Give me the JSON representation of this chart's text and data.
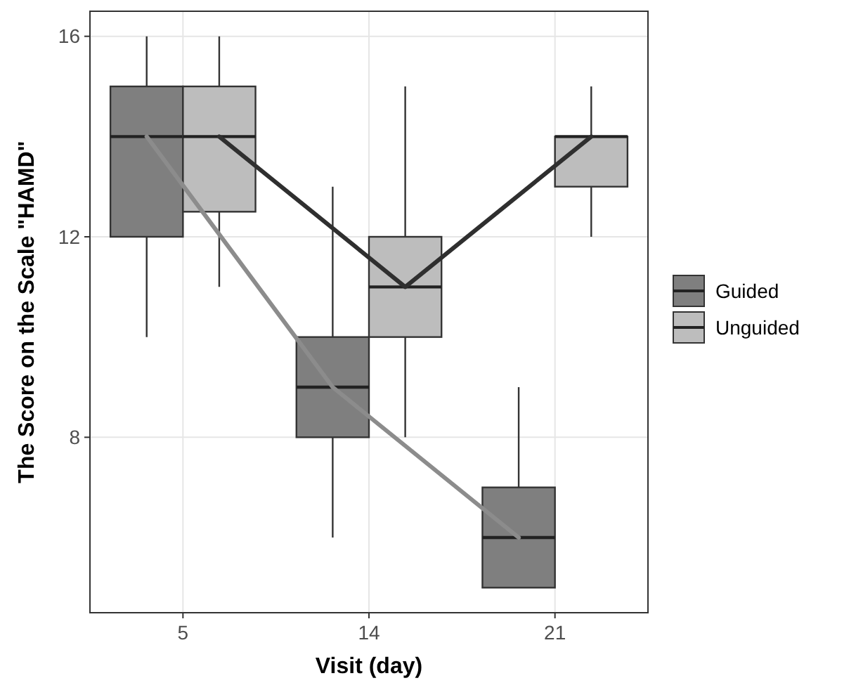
{
  "chart_data": {
    "type": "box",
    "xlabel": "Visit (day)",
    "ylabel": "The Score on the Scale \"HAMD\"",
    "categories": [
      "5",
      "14",
      "21"
    ],
    "ylim": [
      4.5,
      16.5
    ],
    "yticks": [
      8,
      12,
      16
    ],
    "grid": true,
    "legend": "right",
    "series": [
      {
        "name": "Guided",
        "color": "#7f7f7f",
        "boxes": [
          {
            "low": 10,
            "q1": 12,
            "median": 14,
            "q3": 15,
            "high": 16
          },
          {
            "low": 6,
            "q1": 8,
            "median": 9,
            "q3": 10,
            "high": 13
          },
          {
            "low": 5,
            "q1": 5,
            "median": 6,
            "q3": 7,
            "high": 9
          }
        ]
      },
      {
        "name": "Unguided",
        "color": "#bdbdbd",
        "boxes": [
          {
            "low": 11,
            "q1": 12.5,
            "median": 14,
            "q3": 15,
            "high": 16
          },
          {
            "low": 8,
            "q1": 10,
            "median": 11,
            "q3": 12,
            "high": 15
          },
          {
            "low": 12,
            "q1": 13,
            "median": 14,
            "q3": 14,
            "high": 15
          }
        ]
      },
      {
        "type": "line",
        "color": "#8c8c8c",
        "values": [
          14,
          9,
          6
        ]
      },
      {
        "type": "line",
        "color": "#2f2f2f",
        "values": [
          14,
          11,
          14
        ]
      }
    ]
  }
}
